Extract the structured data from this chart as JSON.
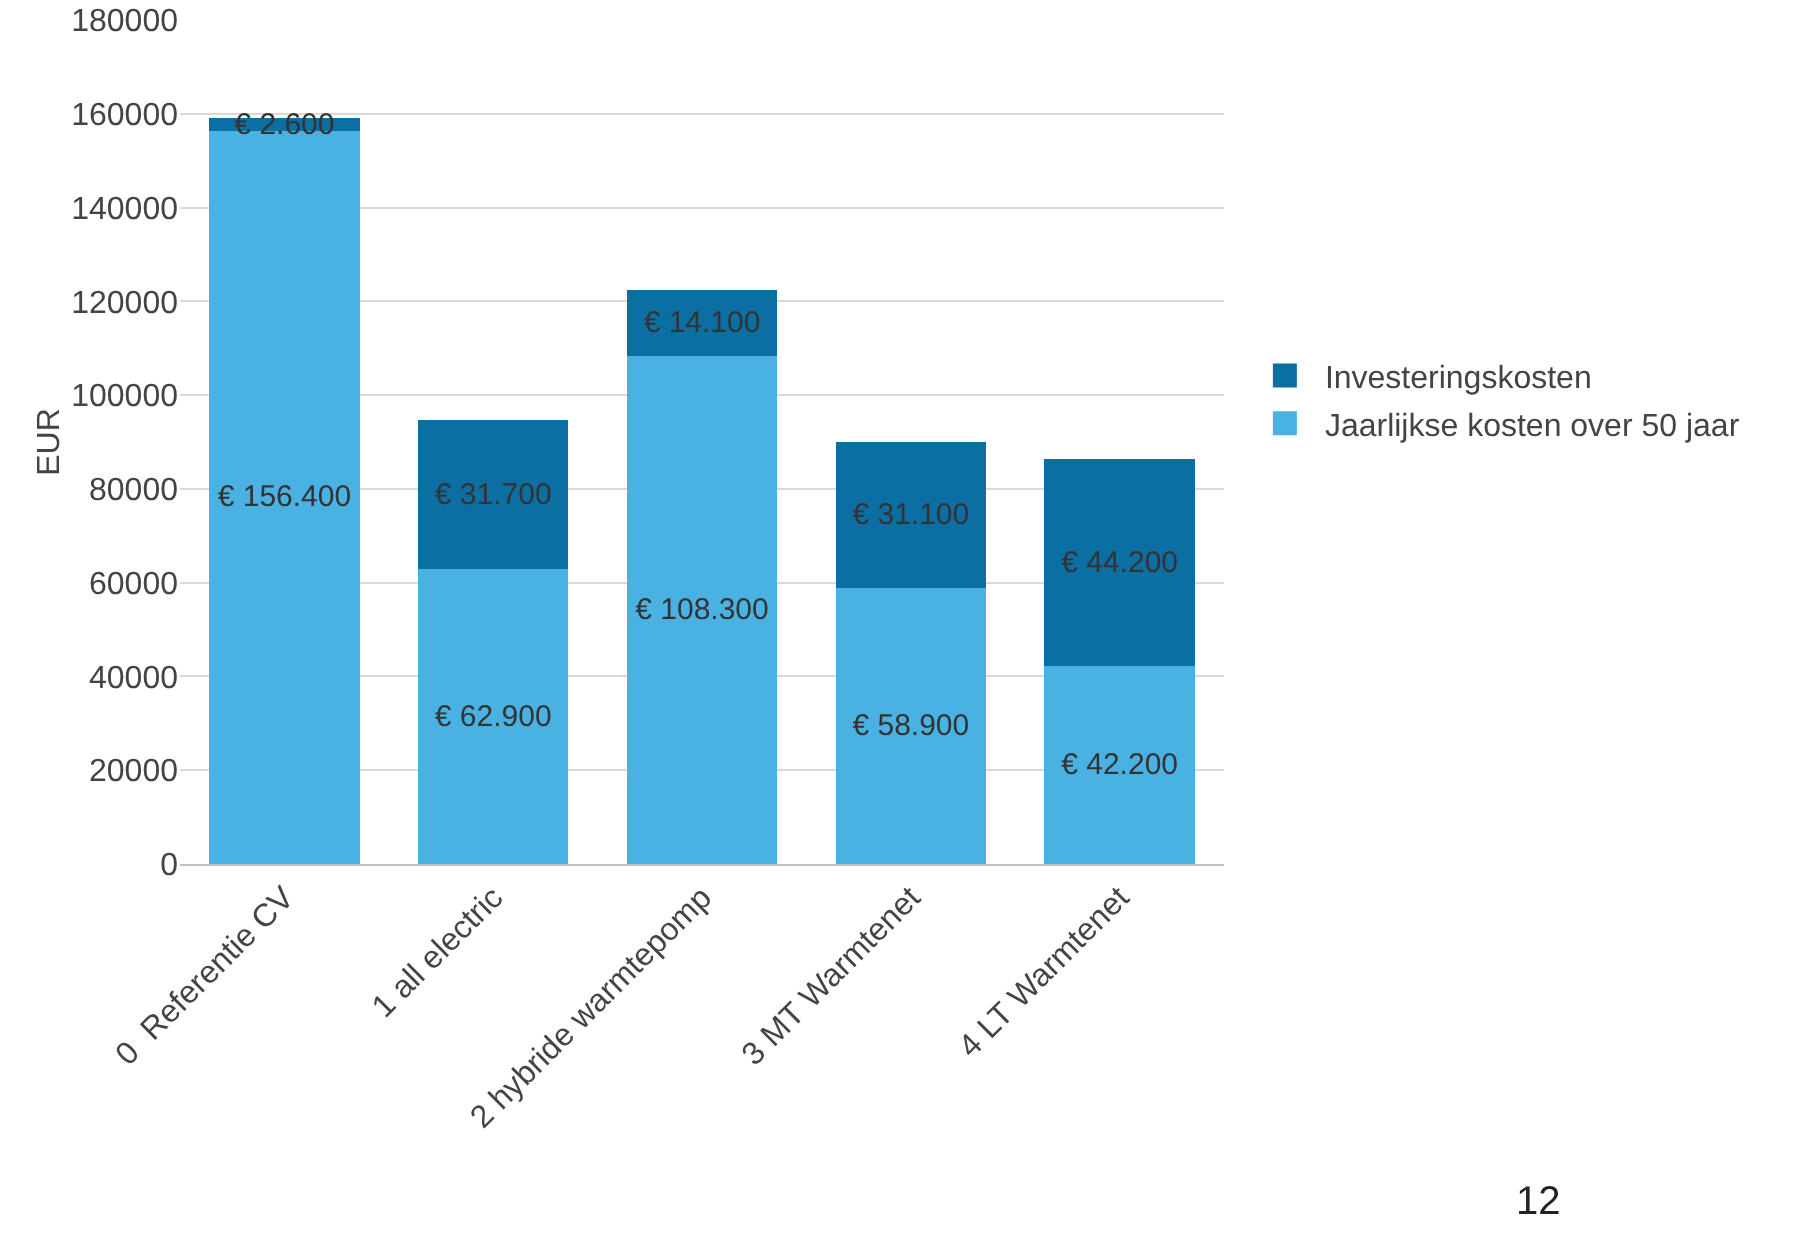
{
  "chart_data": {
    "type": "bar",
    "stacked": true,
    "ylabel": "EUR",
    "categories": [
      "0  Referentie CV",
      "1 all electric",
      "2 hybride warmtepomp",
      "3 MT Warmtenet",
      "4 LT Warmtenet"
    ],
    "series": [
      {
        "name": "Jaarlijkse kosten over 50 jaar",
        "color": "#4ab2e3",
        "values": [
          156400,
          62900,
          108300,
          58900,
          42200
        ],
        "value_labels": [
          "€ 156.400",
          "€ 62.900",
          "€ 108.300",
          "€ 58.900",
          "€ 42.200"
        ]
      },
      {
        "name": "Investeringskosten",
        "color": "#0b6fa4",
        "values": [
          2600,
          31700,
          14100,
          31100,
          44200
        ],
        "value_labels": [
          "€ 2.600",
          "€ 31.700",
          "€ 14.100",
          "€ 31.100",
          "€ 44.200"
        ]
      }
    ],
    "ylim": [
      0,
      180000
    ],
    "yticks": [
      0,
      20000,
      40000,
      60000,
      80000,
      100000,
      120000,
      140000,
      160000,
      180000
    ],
    "grid": "y",
    "legend": "right",
    "annotations": [
      "12"
    ]
  }
}
